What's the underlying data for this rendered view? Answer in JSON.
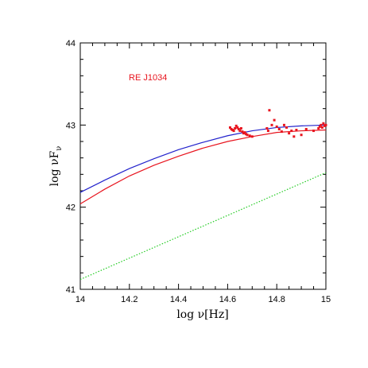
{
  "chart_data": {
    "type": "scatter",
    "xlabel": "log ν[Hz]",
    "ylabel_main": "log νF",
    "ylabel_sub": "ν",
    "xlim": [
      14,
      15
    ],
    "ylim": [
      41,
      44
    ],
    "xticks": [
      14,
      14.2,
      14.4,
      14.6,
      14.8,
      15
    ],
    "xtick_labels": [
      "14",
      "14.2",
      "14.4",
      "14.6",
      "14.8",
      "15"
    ],
    "yticks": [
      41,
      42,
      43,
      44
    ],
    "ytick_labels": [
      "41",
      "42",
      "43",
      "44"
    ],
    "grid": false,
    "annotation": "RE J1034",
    "colors": {
      "blue": "#2222cc",
      "red": "#e8141e",
      "green": "#22cc22"
    },
    "series": [
      {
        "style": "line",
        "color": "#2222cc",
        "x": [
          14.0,
          14.1,
          14.2,
          14.3,
          14.4,
          14.5,
          14.6,
          14.7,
          14.8,
          14.9,
          15.0
        ],
        "y": [
          42.18,
          42.33,
          42.47,
          42.59,
          42.7,
          42.79,
          42.87,
          42.93,
          42.97,
          42.99,
          43.0
        ]
      },
      {
        "style": "line",
        "color": "#e8141e",
        "x": [
          14.0,
          14.1,
          14.2,
          14.3,
          14.4,
          14.5,
          14.6,
          14.7,
          14.8,
          14.9,
          15.0
        ],
        "y": [
          42.04,
          42.22,
          42.38,
          42.51,
          42.62,
          42.72,
          42.8,
          42.86,
          42.91,
          42.93,
          42.94
        ]
      },
      {
        "style": "dotted",
        "color": "#22cc22",
        "x": [
          14.0,
          15.0
        ],
        "y": [
          41.12,
          42.42
        ]
      },
      {
        "style": "points",
        "color": "#e8141e",
        "x": [
          14.61,
          14.615,
          14.62,
          14.625,
          14.63,
          14.635,
          14.64,
          14.645,
          14.65,
          14.655,
          14.66,
          14.665,
          14.67,
          14.675,
          14.68,
          14.69,
          14.7,
          14.76,
          14.765,
          14.77,
          14.78,
          14.79,
          14.8,
          14.81,
          14.82,
          14.83,
          14.84,
          14.85,
          14.86,
          14.87,
          14.88,
          14.9,
          14.92,
          14.95,
          14.97,
          14.975,
          14.98,
          14.985,
          14.99,
          14.995,
          15.0
        ],
        "y": [
          42.97,
          42.95,
          42.94,
          42.93,
          42.96,
          42.99,
          42.97,
          42.95,
          42.93,
          42.96,
          42.92,
          42.9,
          42.91,
          42.89,
          42.88,
          42.87,
          42.86,
          42.96,
          42.93,
          43.18,
          43.0,
          43.06,
          42.98,
          42.95,
          42.92,
          43.0,
          42.97,
          42.9,
          42.93,
          42.86,
          42.94,
          42.88,
          42.95,
          42.93,
          42.96,
          42.98,
          43.0,
          42.97,
          43.02,
          42.99,
          43.0
        ]
      }
    ]
  }
}
